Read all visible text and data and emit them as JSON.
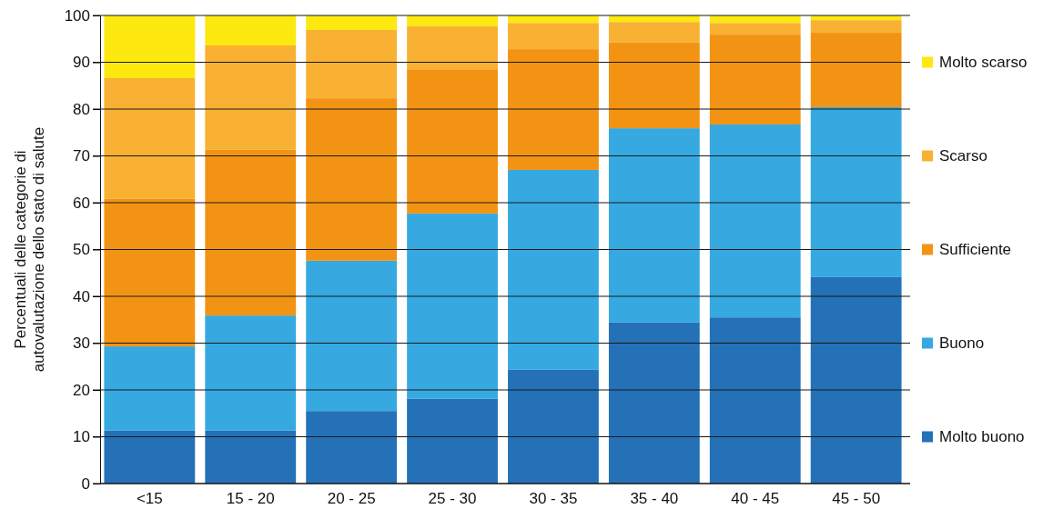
{
  "chart_data": {
    "type": "bar",
    "stacked": true,
    "ylabel": "Percentuali delle categorie di autovalutazione dello stato di salute",
    "categories": [
      "<15",
      "15 - 20",
      "20 - 25",
      "25 - 30",
      "30 - 35",
      "35 - 40",
      "40 - 45",
      "45 - 50"
    ],
    "series": [
      {
        "name": "Molto buono",
        "color": "#2471b8",
        "values": [
          11.3,
          11.3,
          15.5,
          18.1,
          24.3,
          34.4,
          35.5,
          44.1
        ]
      },
      {
        "name": "Buono",
        "color": "#36a9e0",
        "values": [
          18,
          24.6,
          32.1,
          39.6,
          42.7,
          41.5,
          41.2,
          36.3
        ]
      },
      {
        "name": "Sufficiente",
        "color": "#f39313",
        "values": [
          31.5,
          35.4,
          34.7,
          30.8,
          25.8,
          18.3,
          19.2,
          15.9
        ]
      },
      {
        "name": "Scarso",
        "color": "#f8b133",
        "values": [
          25.8,
          22.3,
          14.6,
          9.2,
          5.6,
          4.4,
          2.5,
          2.7
        ]
      },
      {
        "name": "Molto scarso",
        "color": "#fde80f",
        "values": [
          13.4,
          6.4,
          3.1,
          2.3,
          1.6,
          1.4,
          1.6,
          1.0
        ]
      }
    ],
    "ylim": [
      0,
      100
    ],
    "yticks": [
      0,
      10,
      20,
      30,
      40,
      50,
      60,
      70,
      80,
      90,
      100
    ],
    "grid": "y",
    "legend": "right"
  }
}
